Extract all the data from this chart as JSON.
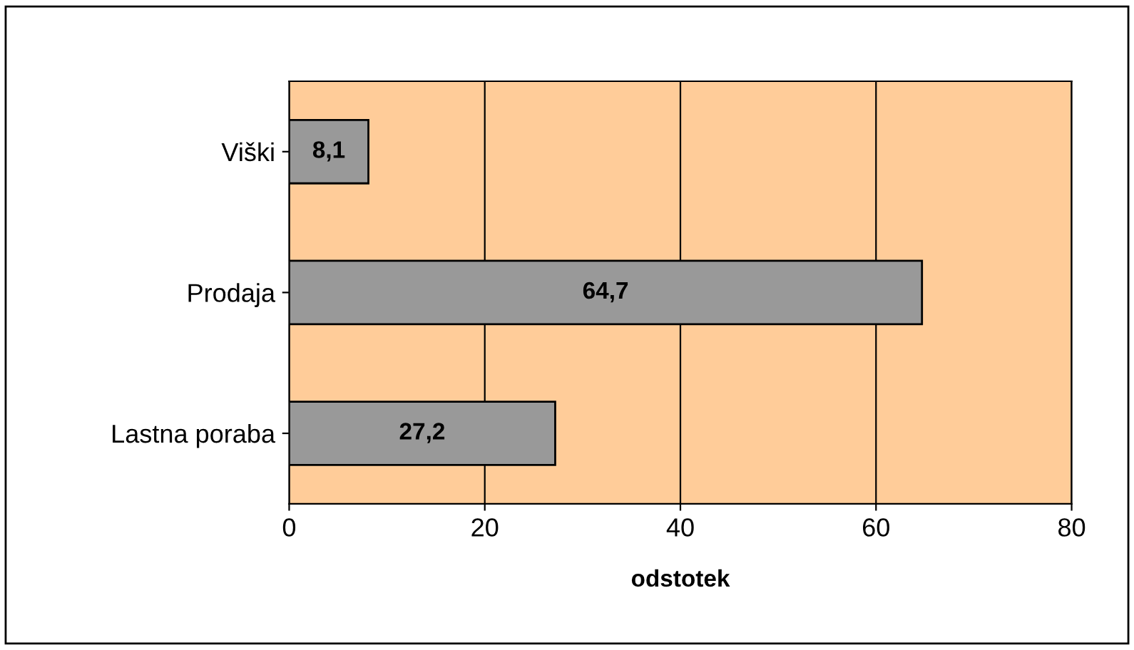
{
  "chart_data": {
    "type": "bar",
    "orientation": "horizontal",
    "categories": [
      "Viški",
      "Prodaja",
      "Lastna poraba"
    ],
    "values": [
      8.1,
      64.7,
      27.2
    ],
    "value_labels": [
      "8,1",
      "64,7",
      "27,2"
    ],
    "color": "#999999",
    "xlim": [
      0,
      80
    ],
    "xticks": [
      0,
      20,
      40,
      60,
      80
    ],
    "xlabel": "odstotek",
    "grid": "x",
    "legend": false
  }
}
